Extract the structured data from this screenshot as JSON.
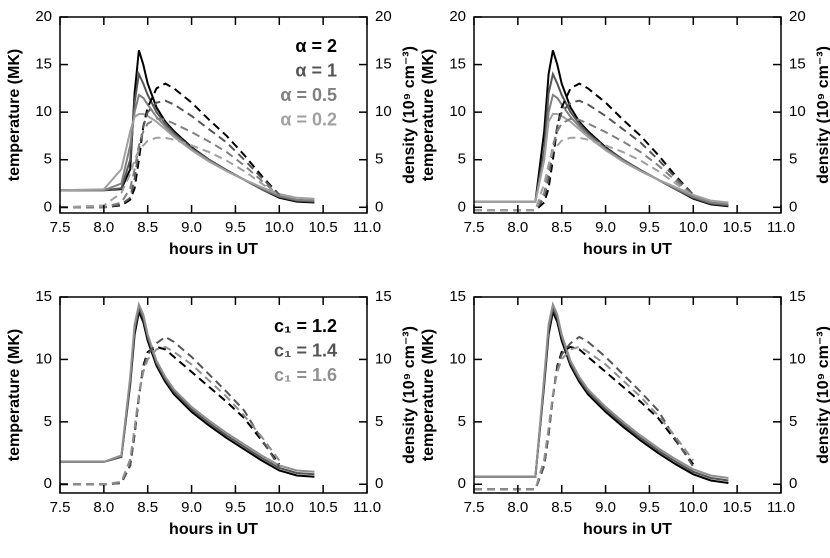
{
  "chart_data": [
    {
      "type": "line",
      "xlabel": "hours in UT",
      "ylabel": "temperature (MK)",
      "y2label": "density (10⁹ cm⁻³)",
      "x": [
        7.5,
        8.0,
        8.2,
        8.3,
        8.35,
        8.4,
        8.45,
        8.5,
        8.6,
        8.7,
        8.8,
        9.0,
        9.2,
        9.4,
        9.6,
        9.8,
        10.0,
        10.2,
        10.4
      ],
      "xlim": [
        7.5,
        11
      ],
      "xticks": [
        7.5,
        {
          "value": 8,
          "label": "8.0"
        },
        8.5,
        {
          "value": 9,
          "label": "9.0"
        },
        9.5,
        {
          "value": 10,
          "label": "10.0"
        },
        10.5,
        {
          "value": 11,
          "label": "11.0"
        }
      ],
      "ylim": [
        -0.6,
        20
      ],
      "yticks": [
        0,
        5,
        10,
        15,
        20
      ],
      "y2lim": [
        -0.6,
        20
      ],
      "y2ticks": [
        0,
        5,
        10,
        15,
        20
      ],
      "legend": "upper right",
      "series": [
        {
          "name": "α = 2",
          "color": "#000000",
          "values": [
            1.8,
            1.8,
            1.9,
            4,
            12,
            16.5,
            15,
            13,
            10.5,
            9,
            8,
            6.3,
            5,
            3.9,
            2.9,
            1.9,
            1.0,
            0.6,
            0.5
          ]
        },
        {
          "name": "α = 1",
          "color": "#555555",
          "values": [
            1.8,
            1.8,
            2.0,
            5,
            11,
            14,
            13,
            11.8,
            10,
            8.8,
            7.8,
            6.2,
            5,
            3.9,
            2.9,
            1.9,
            1.1,
            0.7,
            0.6
          ]
        },
        {
          "name": "α = 0.5",
          "color": "#808080",
          "values": [
            1.8,
            1.8,
            2.5,
            6.5,
            10,
            11.8,
            11.5,
            10.8,
            9.5,
            8.5,
            7.6,
            6.1,
            4.9,
            3.8,
            2.9,
            2.0,
            1.2,
            0.8,
            0.7
          ]
        },
        {
          "name": "α = 0.2",
          "color": "#a0a0a0",
          "values": [
            1.8,
            1.9,
            4,
            8,
            9.5,
            9.8,
            9.8,
            9.6,
            9,
            8.2,
            7.4,
            6,
            4.8,
            3.8,
            2.9,
            2.1,
            1.4,
            1.0,
            0.9
          ]
        },
        {
          "color": "#000000",
          "axis": "y2",
          "dash": true,
          "values": [
            0,
            0,
            0.2,
            0.8,
            2,
            5,
            8.5,
            10.5,
            12.5,
            13,
            12.5,
            11,
            9.2,
            7.5,
            5.5,
            3.3,
            1.3,
            null,
            null
          ]
        },
        {
          "color": "#555555",
          "axis": "y2",
          "dash": true,
          "values": [
            0,
            0,
            0.3,
            1,
            3,
            6,
            8.5,
            10,
            11,
            11.2,
            10.8,
            9.6,
            8.2,
            6.8,
            5,
            3.1,
            1.3,
            null,
            null
          ]
        },
        {
          "color": "#808080",
          "axis": "y2",
          "dash": true,
          "values": [
            0,
            0,
            0.5,
            2,
            4,
            6.5,
            8,
            8.8,
            9.3,
            9.2,
            8.8,
            7.9,
            6.9,
            5.8,
            4.4,
            2.8,
            1.2,
            null,
            null
          ]
        },
        {
          "color": "#a0a0a0",
          "axis": "y2",
          "dash": true,
          "values": [
            0,
            0.2,
            1.5,
            3.5,
            5,
            6,
            6.5,
            7,
            7.3,
            7.3,
            7.1,
            6.5,
            5.8,
            4.9,
            3.8,
            2.5,
            1.2,
            null,
            null
          ]
        }
      ]
    },
    {
      "type": "line",
      "xlabel": "hours in UT",
      "ylabel": "temperature (MK)",
      "y2label": "density (10⁹ cm⁻³)",
      "x": [
        7.5,
        8.0,
        8.2,
        8.3,
        8.35,
        8.4,
        8.45,
        8.5,
        8.6,
        8.7,
        8.8,
        9.0,
        9.2,
        9.4,
        9.6,
        9.8,
        10.0,
        10.2,
        10.4
      ],
      "xlim": [
        7.5,
        11
      ],
      "xticks": [
        7.5,
        {
          "value": 8,
          "label": "8.0"
        },
        8.5,
        {
          "value": 9,
          "label": "9.0"
        },
        9.5,
        {
          "value": 10,
          "label": "10.0"
        },
        10.5,
        {
          "value": 11,
          "label": "11.0"
        }
      ],
      "ylim": [
        -0.6,
        20
      ],
      "yticks": [
        0,
        5,
        10,
        15,
        20
      ],
      "y2lim": [
        -0.6,
        20
      ],
      "y2ticks": [
        0,
        5,
        10,
        15,
        20
      ],
      "series": [
        {
          "color": "#000000",
          "values": [
            0.6,
            0.6,
            0.6,
            8,
            14,
            16.5,
            15,
            13,
            10.5,
            9,
            8,
            6.3,
            5,
            3.9,
            2.9,
            1.9,
            0.9,
            0.3,
            0.1
          ]
        },
        {
          "color": "#555555",
          "values": [
            0.6,
            0.6,
            0.6,
            6,
            12,
            14,
            13,
            11.8,
            10,
            8.8,
            7.8,
            6.2,
            5,
            3.9,
            2.9,
            1.9,
            1.0,
            0.4,
            0.2
          ]
        },
        {
          "color": "#808080",
          "values": [
            0.6,
            0.6,
            0.6,
            5,
            10,
            11.8,
            11.5,
            10.8,
            9.5,
            8.5,
            7.6,
            6.1,
            4.9,
            3.8,
            2.9,
            2.0,
            1.1,
            0.5,
            0.3
          ]
        },
        {
          "color": "#a0a0a0",
          "values": [
            0.6,
            0.6,
            0.6,
            5,
            9,
            9.8,
            9.8,
            9.6,
            9,
            8.2,
            7.4,
            6,
            4.8,
            3.8,
            2.9,
            2.1,
            1.3,
            0.7,
            0.5
          ]
        },
        {
          "color": "#000000",
          "axis": "y2",
          "dash": true,
          "values": [
            -0.3,
            -0.3,
            -0.3,
            0.5,
            2,
            5,
            8.5,
            10.5,
            12.5,
            13,
            12.5,
            11,
            9.2,
            7.5,
            5.5,
            3.3,
            1.3,
            null,
            null
          ]
        },
        {
          "color": "#555555",
          "axis": "y2",
          "dash": true,
          "values": [
            -0.3,
            -0.3,
            -0.3,
            1,
            3,
            6,
            8.5,
            10,
            11,
            11.2,
            10.8,
            9.6,
            8.2,
            6.8,
            5,
            3.1,
            1.3,
            null,
            null
          ]
        },
        {
          "color": "#808080",
          "axis": "y2",
          "dash": true,
          "values": [
            -0.3,
            -0.3,
            -0.3,
            1.5,
            4,
            6.5,
            8,
            8.8,
            9.3,
            9.2,
            8.8,
            7.9,
            6.9,
            5.8,
            4.4,
            2.8,
            1.2,
            null,
            null
          ]
        },
        {
          "color": "#a0a0a0",
          "axis": "y2",
          "dash": true,
          "values": [
            -0.3,
            -0.3,
            -0.3,
            2.5,
            4.5,
            6,
            6.5,
            7,
            7.3,
            7.3,
            7.1,
            6.5,
            5.8,
            4.9,
            3.8,
            2.5,
            1.2,
            null,
            null
          ]
        }
      ]
    },
    {
      "type": "line",
      "xlabel": "hours in UT",
      "ylabel": "temperature (MK)",
      "y2label": "density (10⁹ cm⁻³)",
      "x": [
        7.5,
        8.0,
        8.2,
        8.3,
        8.35,
        8.4,
        8.45,
        8.5,
        8.6,
        8.7,
        8.8,
        9.0,
        9.2,
        9.4,
        9.6,
        9.8,
        10.0,
        10.2,
        10.4
      ],
      "xlim": [
        7.5,
        11
      ],
      "xticks": [
        7.5,
        {
          "value": 8,
          "label": "8.0"
        },
        8.5,
        {
          "value": 9,
          "label": "9.0"
        },
        9.5,
        {
          "value": 10,
          "label": "10.0"
        },
        10.5,
        {
          "value": 11,
          "label": "11.0"
        }
      ],
      "ylim": [
        -0.7,
        15
      ],
      "yticks": [
        0,
        5,
        10,
        15
      ],
      "y2lim": [
        -0.7,
        15
      ],
      "y2ticks": [
        0,
        5,
        10,
        15
      ],
      "legend": "upper right",
      "series": [
        {
          "name": "c₁ = 1.2",
          "color": "#000000",
          "values": [
            1.8,
            1.8,
            2.2,
            8,
            12,
            13.8,
            13,
            11.5,
            9.5,
            8.2,
            7.2,
            5.8,
            4.7,
            3.7,
            2.8,
            1.9,
            1.1,
            0.7,
            0.6
          ]
        },
        {
          "name": "c₁ = 1.4",
          "color": "#555555",
          "values": [
            1.8,
            1.8,
            2.2,
            8.3,
            12.4,
            14.1,
            13.3,
            11.8,
            9.7,
            8.4,
            7.4,
            6,
            4.9,
            3.9,
            3,
            2.1,
            1.3,
            0.9,
            0.8
          ]
        },
        {
          "name": "c₁ = 1.6",
          "color": "#909090",
          "values": [
            1.8,
            1.8,
            2.3,
            8.6,
            12.8,
            14.4,
            13.6,
            12,
            9.9,
            8.6,
            7.6,
            6.2,
            5.1,
            4.1,
            3.2,
            2.3,
            1.5,
            1.1,
            1.0
          ]
        },
        {
          "color": "#000000",
          "axis": "y2",
          "dash": true,
          "values": [
            0,
            0,
            0.1,
            1.5,
            4,
            7,
            9.5,
            10.6,
            11,
            10.8,
            10.2,
            9,
            7.8,
            6.6,
            5.3,
            3.5,
            1.6,
            null,
            null
          ]
        },
        {
          "color": "#555555",
          "axis": "y2",
          "dash": true,
          "values": [
            0,
            0,
            0.1,
            1.5,
            4,
            7,
            9.3,
            10.4,
            11.3,
            11.8,
            11.4,
            10.2,
            8.8,
            7.4,
            5.9,
            3.6,
            1.4,
            null,
            null
          ]
        },
        {
          "color": "#909090",
          "axis": "y2",
          "dash": true,
          "values": [
            0,
            0,
            0.2,
            2,
            4.5,
            7.2,
            9,
            10,
            10.8,
            11,
            10.6,
            9.6,
            8.3,
            7,
            5.5,
            3.8,
            1.9,
            null,
            null
          ]
        }
      ]
    },
    {
      "type": "line",
      "xlabel": "hours in UT",
      "ylabel": "temperature (MK)",
      "y2label": "density (10⁹ cm⁻³)",
      "x": [
        7.5,
        8.0,
        8.2,
        8.3,
        8.35,
        8.4,
        8.45,
        8.5,
        8.6,
        8.7,
        8.8,
        9.0,
        9.2,
        9.4,
        9.6,
        9.8,
        10.0,
        10.2,
        10.4
      ],
      "xlim": [
        7.5,
        11
      ],
      "xticks": [
        7.5,
        {
          "value": 8,
          "label": "8.0"
        },
        8.5,
        {
          "value": 9,
          "label": "9.0"
        },
        9.5,
        {
          "value": 10,
          "label": "10.0"
        },
        10.5,
        {
          "value": 11,
          "label": "11.0"
        }
      ],
      "ylim": [
        -0.7,
        15
      ],
      "yticks": [
        0,
        5,
        10,
        15
      ],
      "y2lim": [
        -0.7,
        15
      ],
      "y2ticks": [
        0,
        5,
        10,
        15
      ],
      "series": [
        {
          "color": "#000000",
          "values": [
            0.6,
            0.6,
            0.6,
            8,
            12,
            13.8,
            13,
            11.5,
            9.5,
            8.2,
            7.2,
            5.8,
            4.6,
            3.5,
            2.5,
            1.6,
            0.8,
            0.3,
            0.1
          ]
        },
        {
          "color": "#555555",
          "values": [
            0.6,
            0.6,
            0.6,
            8.3,
            12.4,
            14.1,
            13.3,
            11.8,
            9.7,
            8.4,
            7.4,
            6,
            4.8,
            3.7,
            2.7,
            1.8,
            1.0,
            0.5,
            0.3
          ]
        },
        {
          "color": "#909090",
          "values": [
            0.6,
            0.6,
            0.6,
            8.6,
            12.8,
            14.4,
            13.6,
            12,
            9.9,
            8.6,
            7.6,
            6.2,
            5,
            3.9,
            2.9,
            2.0,
            1.2,
            0.7,
            0.5
          ]
        },
        {
          "color": "#000000",
          "axis": "y2",
          "dash": true,
          "values": [
            -0.4,
            -0.4,
            -0.4,
            1.5,
            4,
            7,
            9.5,
            10.6,
            11,
            10.8,
            10.2,
            9,
            7.8,
            6.6,
            5.3,
            3.5,
            1.6,
            null,
            null
          ]
        },
        {
          "color": "#555555",
          "axis": "y2",
          "dash": true,
          "values": [
            -0.4,
            -0.4,
            -0.4,
            1.5,
            4,
            7,
            9.3,
            10.4,
            11.3,
            11.8,
            11.4,
            10.2,
            8.8,
            7.4,
            5.9,
            3.6,
            1.4,
            null,
            null
          ]
        },
        {
          "color": "#909090",
          "axis": "y2",
          "dash": true,
          "values": [
            -0.4,
            -0.4,
            -0.4,
            2,
            4.5,
            7.2,
            9,
            10,
            10.8,
            11,
            10.6,
            9.6,
            8.3,
            7,
            5.5,
            3.8,
            1.9,
            null,
            null
          ]
        }
      ]
    }
  ]
}
